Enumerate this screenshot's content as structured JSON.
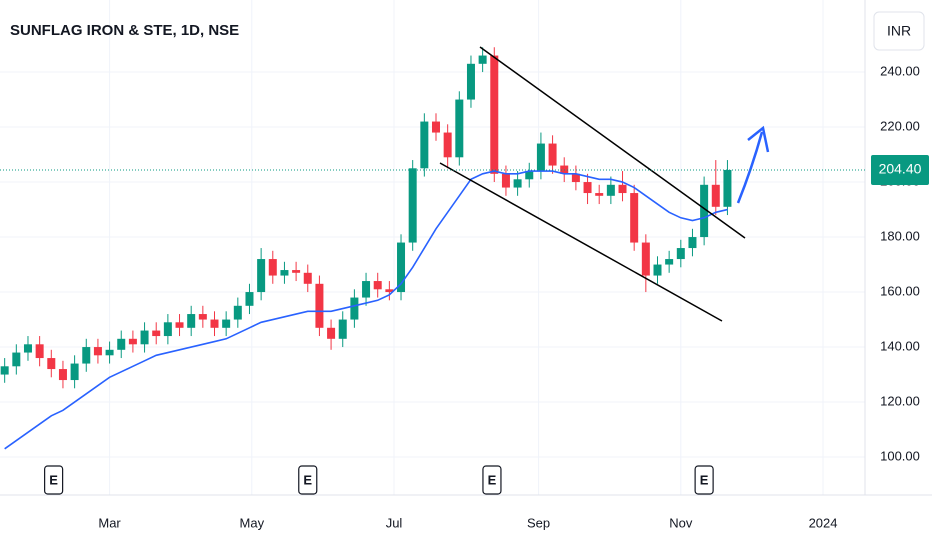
{
  "chart_data": {
    "type": "candlestick",
    "title": "SUNFLAG IRON & STE, 1D, NSE",
    "currency": "INR",
    "x": [
      14,
      19,
      24,
      29,
      34,
      39,
      44,
      49,
      54,
      59,
      64,
      69,
      74,
      79,
      84,
      89,
      94,
      99,
      104,
      109,
      114,
      119,
      124,
      129,
      134,
      139,
      144,
      149,
      154,
      159,
      164,
      169,
      174,
      179,
      184,
      189,
      194,
      199,
      204,
      209,
      214,
      219,
      224,
      229,
      234,
      239,
      244,
      249,
      254,
      259,
      264,
      269,
      274,
      279,
      284,
      289,
      294,
      299,
      304,
      309,
      314,
      319,
      324
    ],
    "open": [
      130,
      133,
      138,
      141,
      136,
      132,
      128,
      134,
      140,
      137,
      139,
      143,
      141,
      146,
      144,
      149,
      147,
      152,
      150,
      147,
      150,
      155,
      160,
      172,
      166,
      168,
      167,
      163,
      147,
      143,
      150,
      158,
      164,
      161,
      160,
      178,
      205,
      222,
      218,
      209,
      230,
      243,
      246,
      203,
      198,
      201,
      204,
      214,
      206,
      203,
      200,
      196,
      195,
      199,
      196,
      178,
      166,
      170,
      172,
      176,
      180,
      199,
      191
    ],
    "high": [
      136,
      141,
      144,
      144,
      139,
      135,
      137,
      143,
      143,
      142,
      146,
      146,
      149,
      149,
      152,
      152,
      155,
      155,
      153,
      153,
      158,
      163,
      176,
      175,
      171,
      171,
      170,
      166,
      150,
      153,
      161,
      167,
      167,
      164,
      181,
      208,
      225,
      225,
      221,
      233,
      246,
      249,
      249,
      206,
      204,
      207,
      218,
      217,
      209,
      206,
      203,
      199,
      202,
      204,
      199,
      181,
      173,
      175,
      179,
      183,
      202,
      208,
      208
    ],
    "low": [
      127,
      130,
      135,
      133,
      129,
      125,
      125,
      131,
      134,
      134,
      136,
      138,
      138,
      141,
      141,
      144,
      144,
      147,
      144,
      144,
      147,
      152,
      157,
      163,
      163,
      164,
      160,
      144,
      139,
      140,
      147,
      155,
      158,
      157,
      157,
      175,
      202,
      215,
      205,
      206,
      227,
      240,
      200,
      195,
      195,
      198,
      201,
      203,
      200,
      197,
      192,
      192,
      192,
      193,
      175,
      160,
      163,
      167,
      169,
      173,
      177,
      188,
      188
    ],
    "close": [
      133,
      138,
      141,
      136,
      132,
      128,
      134,
      140,
      137,
      139,
      143,
      141,
      146,
      144,
      149,
      147,
      152,
      150,
      147,
      150,
      155,
      160,
      172,
      166,
      168,
      167,
      163,
      147,
      143,
      150,
      158,
      164,
      161,
      160,
      178,
      205,
      222,
      218,
      209,
      230,
      243,
      246,
      203,
      198,
      201,
      204,
      214,
      206,
      203,
      200,
      196,
      195,
      199,
      196,
      178,
      166,
      170,
      172,
      176,
      180,
      199,
      191,
      204.4
    ],
    "up_color": "#089981",
    "down_color": "#f23645",
    "moving_average": {
      "color": "#2962ff",
      "values": [
        103,
        106,
        109,
        112,
        115,
        117,
        120,
        123,
        126,
        129,
        131,
        133,
        135,
        137,
        138,
        139,
        140,
        141,
        142,
        143,
        145,
        147,
        149,
        150,
        151,
        152,
        153,
        153,
        153,
        154,
        155,
        156,
        157,
        159,
        163,
        169,
        176,
        183,
        189,
        195,
        201,
        203,
        204,
        203,
        203,
        204,
        204,
        204,
        203,
        203,
        202,
        201,
        201,
        200,
        198,
        195,
        192,
        189,
        187,
        186,
        187,
        189,
        190
      ]
    },
    "last_price": {
      "value": 204.4,
      "label": "204.40"
    },
    "events": [
      {
        "x": 35,
        "label": "E"
      },
      {
        "x": 144,
        "label": "E"
      },
      {
        "x": 223,
        "label": "E"
      },
      {
        "x": 314,
        "label": "E"
      }
    ],
    "xlim": [
      12,
      383
    ],
    "ylim": [
      86.2,
      266.2
    ],
    "xticks": [
      {
        "value": 59,
        "label": "Mar"
      },
      {
        "value": 120,
        "label": "May"
      },
      {
        "value": 181,
        "label": "Jul"
      },
      {
        "value": 243,
        "label": "Sep"
      },
      {
        "value": 304,
        "label": "Nov"
      },
      {
        "value": 365,
        "label": "2024"
      }
    ],
    "yticks": [
      {
        "value": 100,
        "label": "100.00"
      },
      {
        "value": 120,
        "label": "120.00"
      },
      {
        "value": 140,
        "label": "140.00"
      },
      {
        "value": 160,
        "label": "160.00"
      },
      {
        "value": 180,
        "label": "180.00"
      },
      {
        "value": 200,
        "label": "200.00"
      },
      {
        "value": 220,
        "label": "220.00"
      },
      {
        "value": 240,
        "label": "240.00"
      }
    ],
    "grid": true
  }
}
